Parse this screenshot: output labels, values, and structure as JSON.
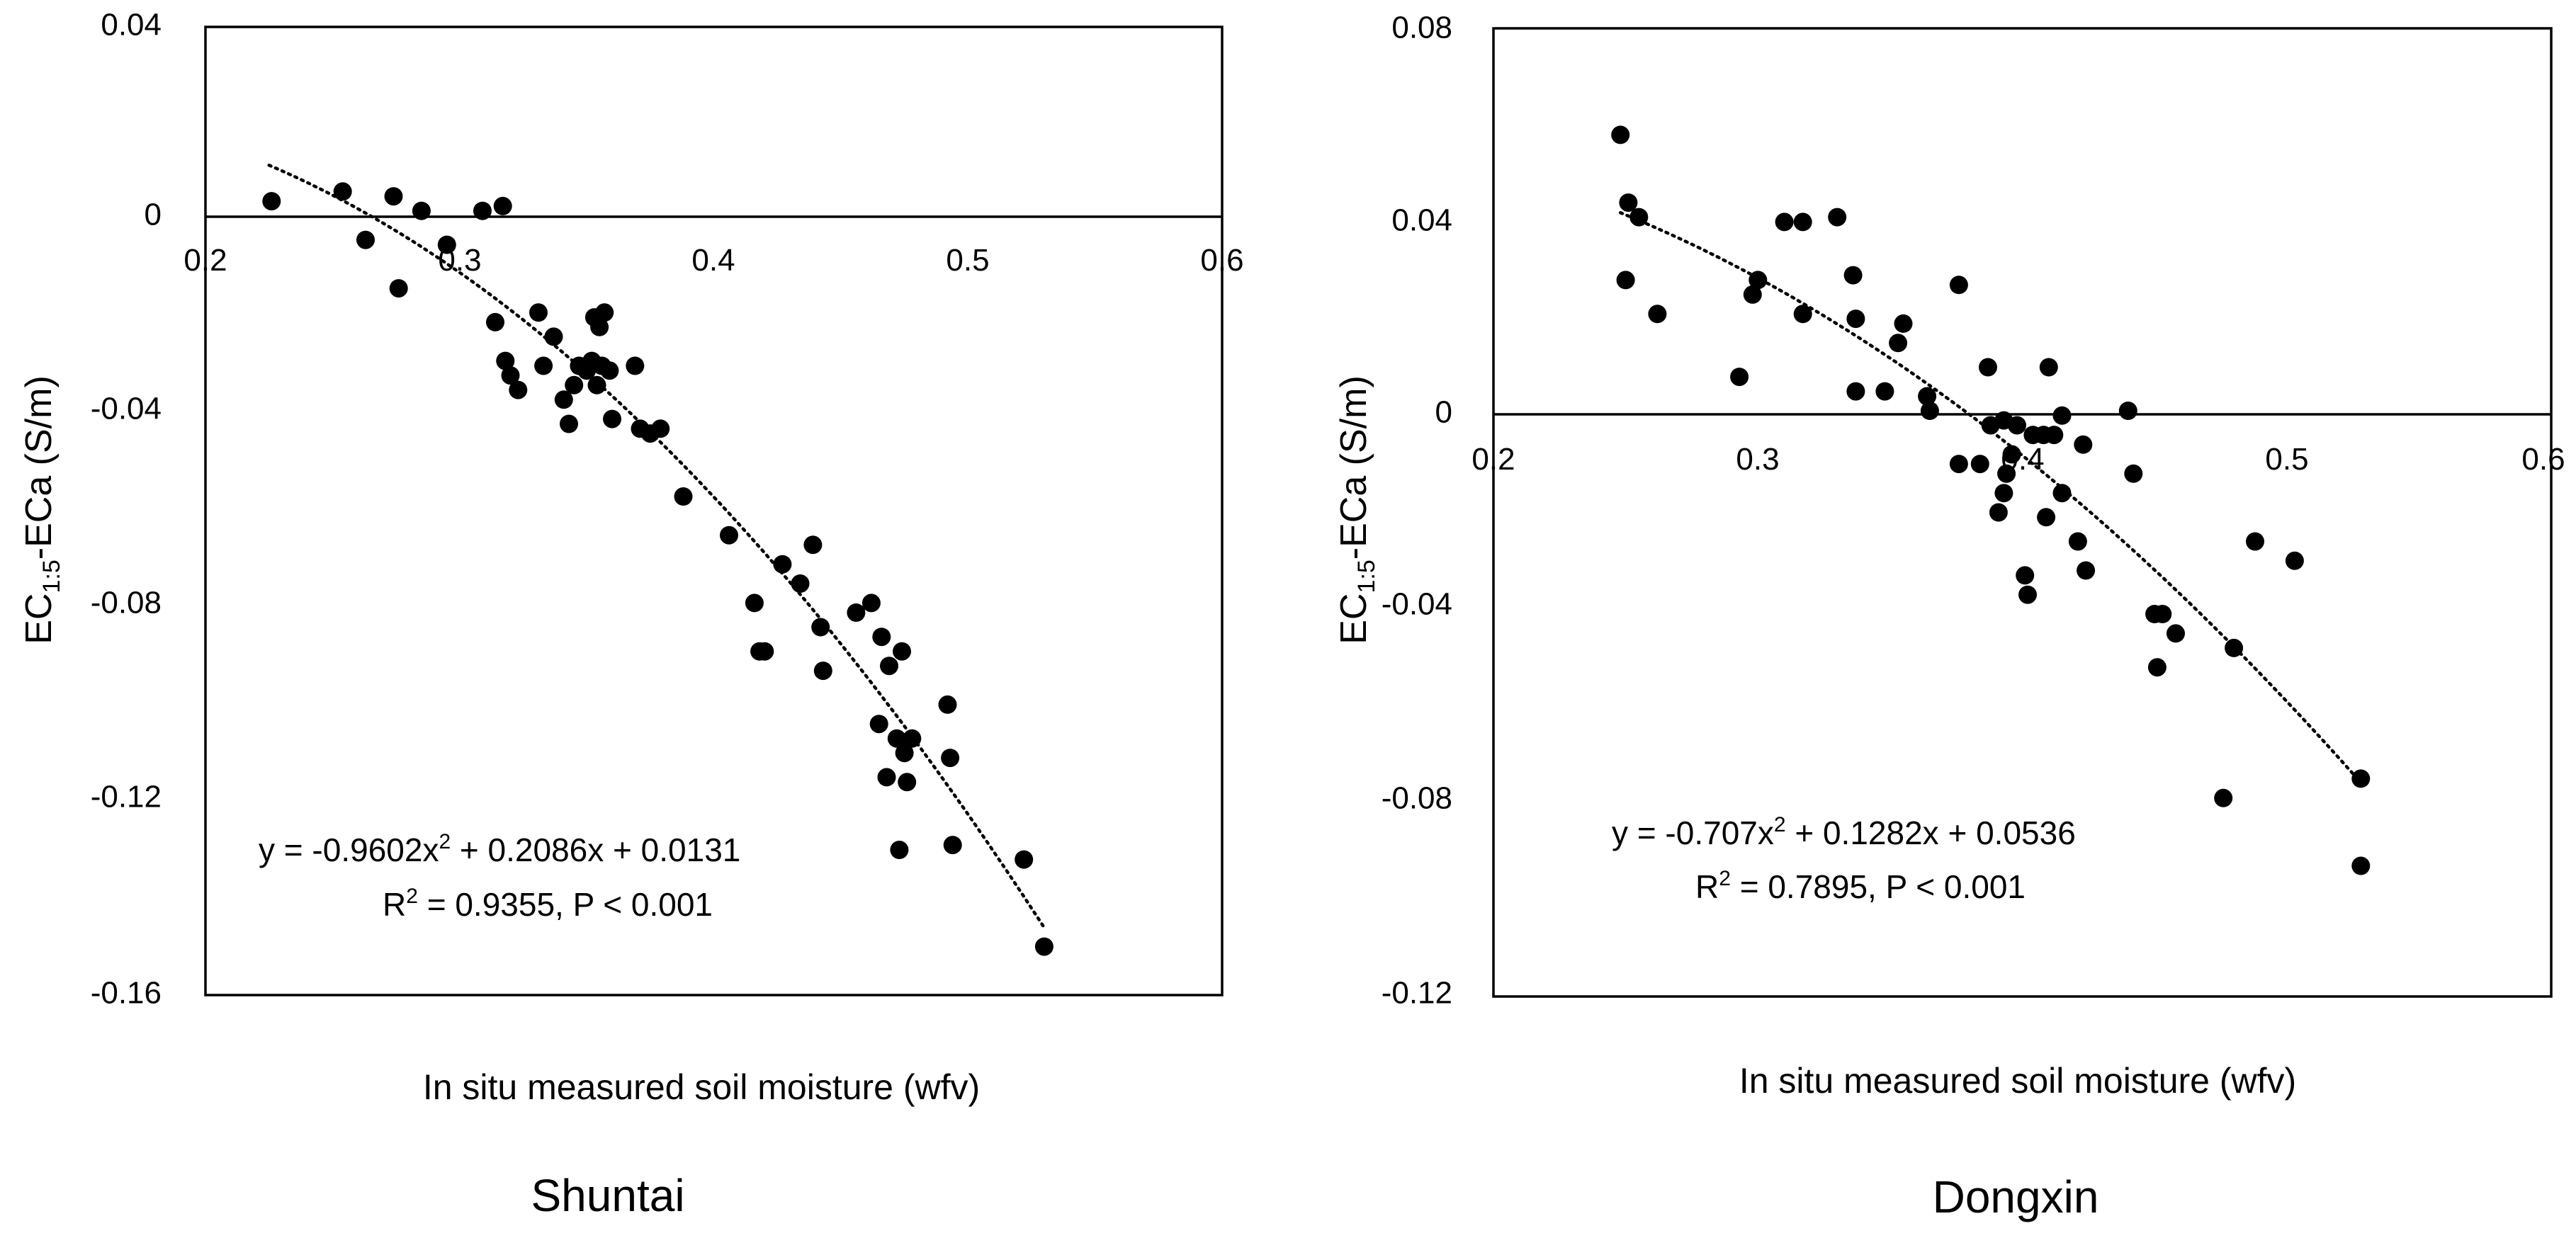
{
  "chart_data": [
    {
      "type": "scatter",
      "panel": "Shuntai",
      "xlabel": "In situ measured soil moisture (wfv)",
      "ylabel_main": "EC",
      "ylabel_sub": "1:5",
      "ylabel_rest": "-ECa (S/m)",
      "xlim": [
        0.2,
        0.6
      ],
      "ylim": [
        -0.16,
        0.04
      ],
      "xticks": [
        0.2,
        0.3,
        0.4,
        0.5,
        0.6
      ],
      "xtick_labels": [
        "0.2",
        "0.3",
        "0.4",
        "0.5",
        "0.6"
      ],
      "yticks": [
        0.04,
        0,
        -0.04,
        -0.08,
        -0.12,
        -0.16
      ],
      "ytick_labels": [
        "0.04",
        "0",
        "-0.04",
        "-0.08",
        "-0.12",
        "-0.16"
      ],
      "grid": false,
      "trendline": {
        "type": "polynomial",
        "coef": [
          -0.9602,
          0.2086,
          0.0131
        ],
        "x_range": [
          0.225,
          0.53
        ]
      },
      "equation": {
        "prefix": "y = -0.9602x",
        "power": "2",
        "suffix": " + 0.2086x + 0.0131"
      },
      "r2": {
        "prefix": "R",
        "power": "2",
        "suffix": " = 0.9355, P < 0.001"
      },
      "points": [
        [
          0.226,
          0.004
        ],
        [
          0.254,
          0.006
        ],
        [
          0.263,
          -0.004
        ],
        [
          0.274,
          0.005
        ],
        [
          0.276,
          -0.014
        ],
        [
          0.285,
          0.002
        ],
        [
          0.295,
          -0.005
        ],
        [
          0.309,
          0.002
        ],
        [
          0.317,
          0.003
        ],
        [
          0.314,
          -0.021
        ],
        [
          0.318,
          -0.029
        ],
        [
          0.32,
          -0.032
        ],
        [
          0.323,
          -0.035
        ],
        [
          0.331,
          -0.019
        ],
        [
          0.333,
          -0.03
        ],
        [
          0.337,
          -0.024
        ],
        [
          0.341,
          -0.037
        ],
        [
          0.343,
          -0.042
        ],
        [
          0.345,
          -0.034
        ],
        [
          0.347,
          -0.03
        ],
        [
          0.35,
          -0.031
        ],
        [
          0.352,
          -0.029
        ],
        [
          0.353,
          -0.02
        ],
        [
          0.354,
          -0.034
        ],
        [
          0.355,
          -0.022
        ],
        [
          0.356,
          -0.03
        ],
        [
          0.357,
          -0.019
        ],
        [
          0.359,
          -0.031
        ],
        [
          0.36,
          -0.041
        ],
        [
          0.369,
          -0.03
        ],
        [
          0.371,
          -0.043
        ],
        [
          0.375,
          -0.044
        ],
        [
          0.379,
          -0.043
        ],
        [
          0.388,
          -0.057
        ],
        [
          0.406,
          -0.065
        ],
        [
          0.416,
          -0.079
        ],
        [
          0.418,
          -0.089
        ],
        [
          0.42,
          -0.089
        ],
        [
          0.427,
          -0.071
        ],
        [
          0.434,
          -0.075
        ],
        [
          0.439,
          -0.067
        ],
        [
          0.442,
          -0.084
        ],
        [
          0.443,
          -0.093
        ],
        [
          0.456,
          -0.081
        ],
        [
          0.462,
          -0.079
        ],
        [
          0.465,
          -0.104
        ],
        [
          0.466,
          -0.086
        ],
        [
          0.468,
          -0.115
        ],
        [
          0.469,
          -0.092
        ],
        [
          0.472,
          -0.107
        ],
        [
          0.473,
          -0.13
        ],
        [
          0.474,
          -0.089
        ],
        [
          0.475,
          -0.11
        ],
        [
          0.476,
          -0.116
        ],
        [
          0.478,
          -0.107
        ],
        [
          0.492,
          -0.1
        ],
        [
          0.493,
          -0.111
        ],
        [
          0.494,
          -0.129
        ],
        [
          0.522,
          -0.132
        ],
        [
          0.53,
          -0.15
        ]
      ],
      "panel_title": "Shuntai"
    },
    {
      "type": "scatter",
      "panel": "Dongxin",
      "xlabel": "In situ measured soil moisture (wfv)",
      "ylabel_main": "EC",
      "ylabel_sub": "1:5",
      "ylabel_rest": "-ECa (S/m)",
      "xlim": [
        0.2,
        0.6
      ],
      "ylim": [
        -0.12,
        0.08
      ],
      "xticks": [
        0.2,
        0.3,
        0.4,
        0.5,
        0.6
      ],
      "xtick_labels": [
        "0.2",
        "0.3",
        "0.4",
        "0.5",
        "0.6"
      ],
      "yticks": [
        0.08,
        0.04,
        0,
        -0.04,
        -0.08,
        -0.12
      ],
      "ytick_labels": [
        "0.08",
        "0.04",
        "0",
        "-0.04",
        "-0.08",
        "-0.12"
      ],
      "grid": false,
      "trendline": {
        "type": "polynomial",
        "coef": [
          -0.707,
          0.1282,
          0.0536
        ],
        "x_range": [
          0.248,
          0.528
        ]
      },
      "equation": {
        "prefix": "y = -0.707x",
        "power": "2",
        "suffix": " + 0.1282x + 0.0536"
      },
      "r2": {
        "prefix": "R",
        "power": "2",
        "suffix": " = 0.7895, P < 0.001"
      },
      "points": [
        [
          0.248,
          0.058
        ],
        [
          0.251,
          0.044
        ],
        [
          0.25,
          0.028
        ],
        [
          0.255,
          0.041
        ],
        [
          0.262,
          0.021
        ],
        [
          0.293,
          0.008
        ],
        [
          0.298,
          0.025
        ],
        [
          0.3,
          0.028
        ],
        [
          0.31,
          0.04
        ],
        [
          0.317,
          0.04
        ],
        [
          0.317,
          0.021
        ],
        [
          0.33,
          0.041
        ],
        [
          0.336,
          0.029
        ],
        [
          0.337,
          0.02
        ],
        [
          0.337,
          0.005
        ],
        [
          0.348,
          0.005
        ],
        [
          0.353,
          0.015
        ],
        [
          0.355,
          0.019
        ],
        [
          0.364,
          0.004
        ],
        [
          0.365,
          0.001
        ],
        [
          0.376,
          0.027
        ],
        [
          0.376,
          -0.01
        ],
        [
          0.384,
          -0.01
        ],
        [
          0.387,
          0.01
        ],
        [
          0.388,
          -0.002
        ],
        [
          0.391,
          -0.02
        ],
        [
          0.393,
          -0.016
        ],
        [
          0.393,
          -0.001
        ],
        [
          0.394,
          -0.012
        ],
        [
          0.396,
          -0.008
        ],
        [
          0.398,
          -0.002
        ],
        [
          0.401,
          -0.033
        ],
        [
          0.402,
          -0.037
        ],
        [
          0.404,
          -0.004
        ],
        [
          0.408,
          -0.004
        ],
        [
          0.409,
          -0.021
        ],
        [
          0.41,
          0.01
        ],
        [
          0.412,
          -0.004
        ],
        [
          0.415,
          0.0
        ],
        [
          0.415,
          -0.016
        ],
        [
          0.421,
          -0.026
        ],
        [
          0.423,
          -0.006
        ],
        [
          0.424,
          -0.032
        ],
        [
          0.44,
          0.001
        ],
        [
          0.442,
          -0.012
        ],
        [
          0.45,
          -0.041
        ],
        [
          0.451,
          -0.052
        ],
        [
          0.453,
          -0.041
        ],
        [
          0.458,
          -0.045
        ],
        [
          0.476,
          -0.079
        ],
        [
          0.48,
          -0.048
        ],
        [
          0.488,
          -0.026
        ],
        [
          0.503,
          -0.03
        ],
        [
          0.528,
          -0.075
        ],
        [
          0.528,
          -0.093
        ]
      ],
      "panel_title": "Dongxin"
    }
  ]
}
